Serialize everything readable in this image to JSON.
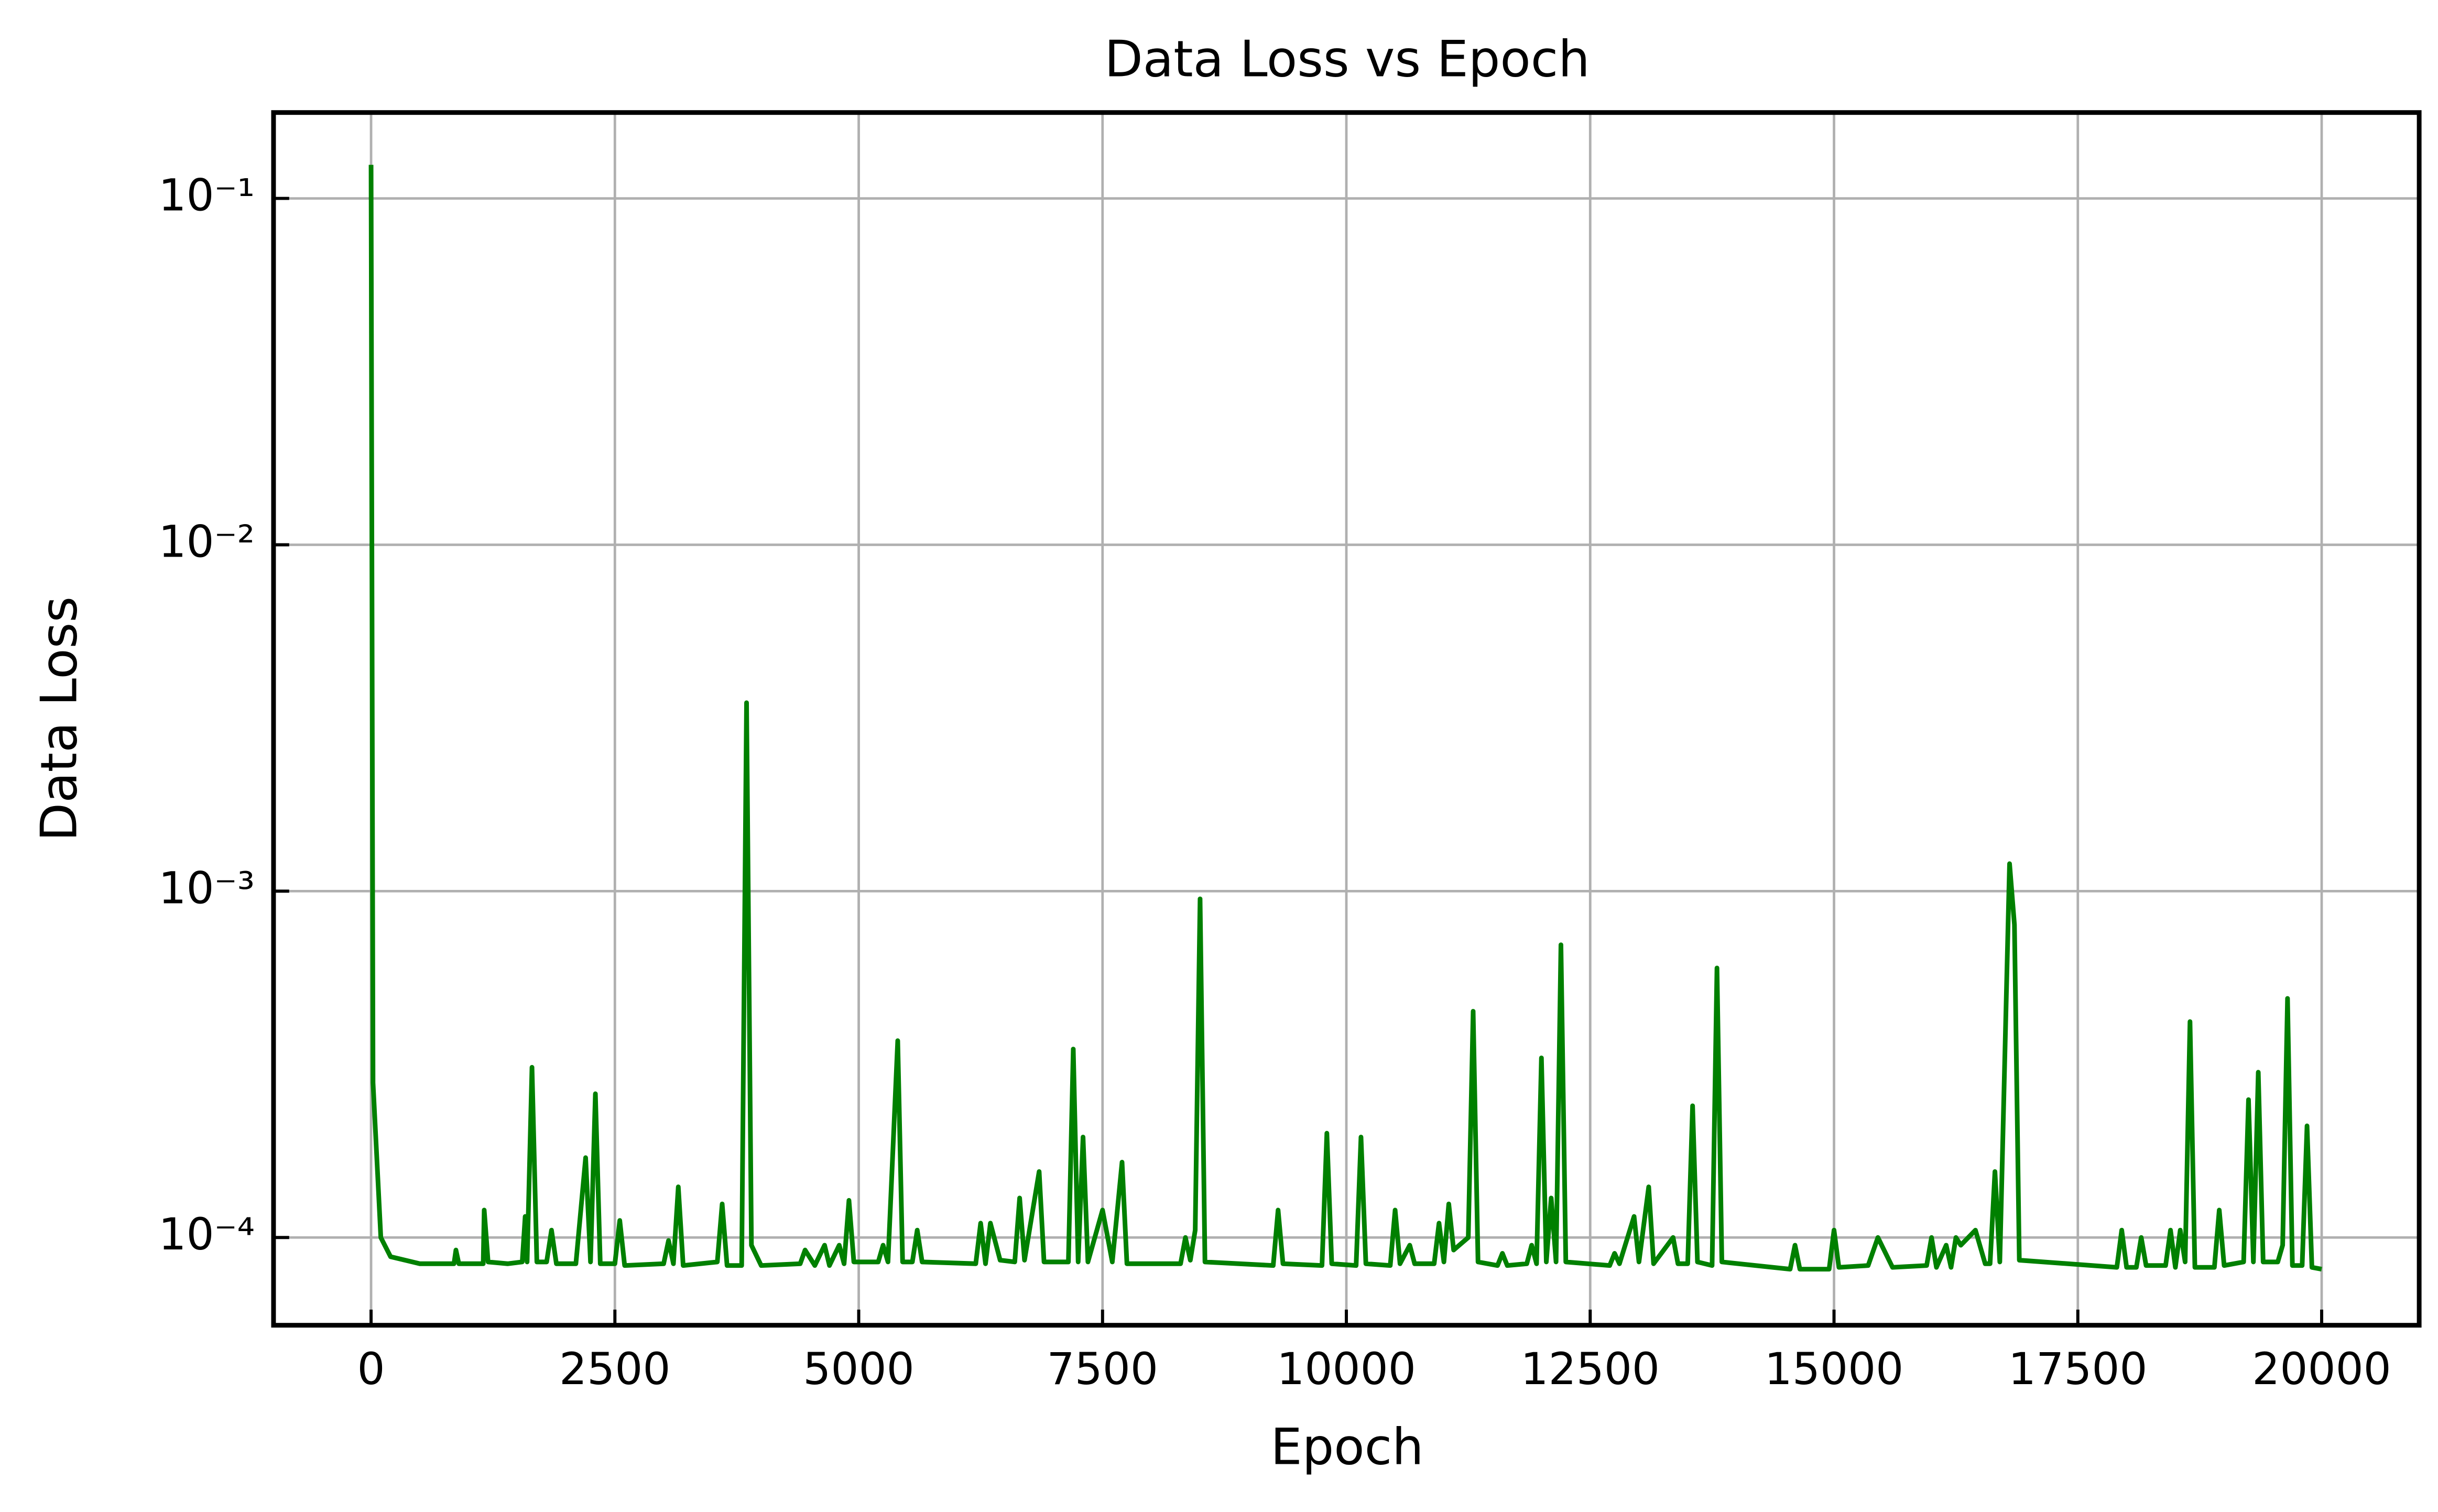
{
  "chart_data": {
    "type": "line",
    "title": "Data Loss vs Epoch",
    "x_label": "Epoch",
    "y_label": "Data Loss",
    "log_y": true,
    "grid": true,
    "xlim": [
      -1000,
      21000
    ],
    "xticks": [
      0,
      2500,
      5000,
      7500,
      10000,
      12500,
      15000,
      17500,
      20000
    ],
    "ylim": [
      5.58e-05,
      0.177
    ],
    "yticks": [
      {
        "value": 0.0001,
        "label": "10⁻⁴"
      },
      {
        "value": 0.001,
        "label": "10⁻³"
      },
      {
        "value": 0.01,
        "label": "10⁻²"
      },
      {
        "value": 0.1,
        "label": "10⁻¹"
      }
    ],
    "x": [
      0,
      20,
      100,
      200,
      500,
      850,
      870,
      900,
      1150,
      1160,
      1200,
      1400,
      1550,
      1580,
      1600,
      1650,
      1700,
      1800,
      1850,
      1900,
      2100,
      2200,
      2250,
      2300,
      2350,
      2500,
      2550,
      2600,
      3000,
      3050,
      3100,
      3150,
      3200,
      3550,
      3600,
      3650,
      3800,
      3850,
      3900,
      4000,
      4400,
      4450,
      4550,
      4650,
      4700,
      4800,
      4850,
      4900,
      4950,
      5200,
      5250,
      5300,
      5400,
      5450,
      5550,
      5600,
      5650,
      6200,
      6250,
      6300,
      6350,
      6450,
      6600,
      6650,
      6700,
      6850,
      6900,
      7150,
      7200,
      7250,
      7300,
      7350,
      7500,
      7600,
      7700,
      7750,
      8300,
      8350,
      8400,
      8450,
      8500,
      8550,
      9250,
      9300,
      9350,
      9750,
      9800,
      9850,
      10100,
      10150,
      10200,
      10450,
      10500,
      10550,
      10650,
      10700,
      10900,
      10950,
      11000,
      11050,
      11100,
      11250,
      11300,
      11350,
      11550,
      11600,
      11650,
      11850,
      11900,
      11950,
      12000,
      12050,
      12100,
      12150,
      12200,
      12250,
      12700,
      12750,
      12800,
      12950,
      13000,
      13100,
      13150,
      13350,
      13400,
      13500,
      13550,
      13600,
      13750,
      13800,
      13850,
      14550,
      14600,
      14650,
      14950,
      15000,
      15050,
      15350,
      15450,
      15600,
      15950,
      16000,
      16050,
      16150,
      16200,
      16250,
      16300,
      16450,
      16550,
      16600,
      16650,
      16700,
      16800,
      16850,
      16900,
      17900,
      17950,
      18000,
      18100,
      18150,
      18200,
      18400,
      18450,
      18500,
      18550,
      18600,
      18650,
      18700,
      18900,
      18950,
      19000,
      19200,
      19250,
      19300,
      19350,
      19400,
      19550,
      19600,
      19650,
      19700,
      19800,
      19850,
      19900,
      20000
    ],
    "series": [
      {
        "name": "Data Loss",
        "color": "#008000",
        "values": [
          0.125,
          0.00028,
          0.0001,
          8.8e-05,
          8.4e-05,
          8.4e-05,
          9.2e-05,
          8.4e-05,
          8.4e-05,
          0.00012,
          8.5e-05,
          8.4e-05,
          8.5e-05,
          0.000115,
          8.5e-05,
          0.00031,
          8.5e-05,
          8.5e-05,
          0.000105,
          8.4e-05,
          8.4e-05,
          0.00017,
          8.5e-05,
          0.00026,
          8.4e-05,
          8.4e-05,
          0.000112,
          8.3e-05,
          8.4e-05,
          9.8e-05,
          8.4e-05,
          0.00014,
          8.3e-05,
          8.5e-05,
          0.000125,
          8.3e-05,
          8.3e-05,
          0.0035,
          9.5e-05,
          8.3e-05,
          8.4e-05,
          9.2e-05,
          8.3e-05,
          9.5e-05,
          8.3e-05,
          9.5e-05,
          8.4e-05,
          0.000128,
          8.5e-05,
          8.5e-05,
          9.5e-05,
          8.5e-05,
          0.00037,
          8.5e-05,
          8.5e-05,
          0.000105,
          8.5e-05,
          8.4e-05,
          0.00011,
          8.4e-05,
          0.00011,
          8.6e-05,
          8.5e-05,
          0.00013,
          8.6e-05,
          0.000155,
          8.5e-05,
          8.5e-05,
          0.00035,
          8.5e-05,
          0.000195,
          8.5e-05,
          0.00012,
          8.5e-05,
          0.000165,
          8.4e-05,
          8.4e-05,
          0.0001,
          8.6e-05,
          0.000105,
          0.00095,
          8.5e-05,
          8.3e-05,
          0.00012,
          8.4e-05,
          8.3e-05,
          0.0002,
          8.4e-05,
          8.3e-05,
          0.000195,
          8.4e-05,
          8.3e-05,
          0.00012,
          8.4e-05,
          9.5e-05,
          8.4e-05,
          8.4e-05,
          0.00011,
          8.5e-05,
          0.000125,
          9.2e-05,
          0.0001,
          0.00045,
          8.5e-05,
          8.3e-05,
          9e-05,
          8.3e-05,
          8.4e-05,
          9.5e-05,
          8.4e-05,
          0.00033,
          8.5e-05,
          0.00013,
          8.5e-05,
          0.0007,
          8.5e-05,
          8.3e-05,
          9e-05,
          8.4e-05,
          0.000115,
          8.5e-05,
          0.00014,
          8.4e-05,
          0.0001,
          8.4e-05,
          8.4e-05,
          0.00024,
          8.5e-05,
          8.3e-05,
          0.0006,
          8.5e-05,
          8.1e-05,
          9.5e-05,
          8.1e-05,
          8.1e-05,
          0.000105,
          8.2e-05,
          8.3e-05,
          0.0001,
          8.2e-05,
          8.3e-05,
          0.0001,
          8.2e-05,
          9.5e-05,
          8.2e-05,
          0.0001,
          9.5e-05,
          0.000105,
          8.4e-05,
          8.4e-05,
          0.000155,
          8.5e-05,
          0.0012,
          0.0008,
          8.6e-05,
          8.2e-05,
          0.000105,
          8.2e-05,
          8.2e-05,
          0.0001,
          8.3e-05,
          8.3e-05,
          0.000105,
          8.2e-05,
          0.000105,
          8.5e-05,
          0.00042,
          8.2e-05,
          8.2e-05,
          0.00012,
          8.3e-05,
          8.5e-05,
          0.00025,
          8.5e-05,
          0.0003,
          8.5e-05,
          8.5e-05,
          9.5e-05,
          0.00049,
          8.3e-05,
          8.3e-05,
          0.00021,
          8.2e-05,
          8.1e-05
        ]
      }
    ]
  }
}
